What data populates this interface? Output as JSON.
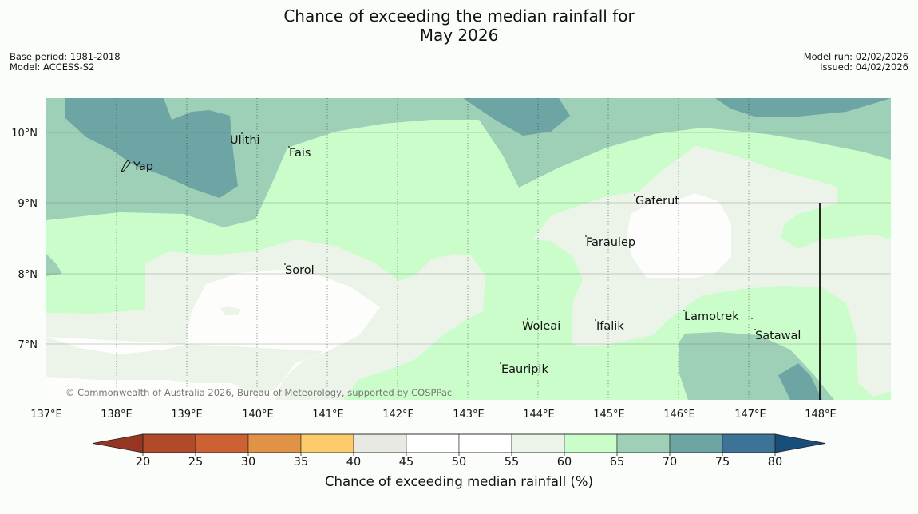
{
  "title": {
    "line1": "Chance of exceeding the median rainfall for",
    "line2": "May 2026"
  },
  "meta": {
    "base_period": "Base period: 1981-2018",
    "model": "Model: ACCESS-S2",
    "model_run": "Model run: 02/02/2026",
    "issued": "Issued: 04/02/2026"
  },
  "map": {
    "longitude_labels": [
      "137°E",
      "138°E",
      "139°E",
      "140°E",
      "141°E",
      "142°E",
      "143°E",
      "144°E",
      "145°E",
      "146°E",
      "147°E",
      "148°E"
    ],
    "latitude_labels": [
      "10°N",
      "9°N",
      "8°N",
      "7°N"
    ],
    "places": [
      {
        "name": "Ulithi"
      },
      {
        "name": "Fais"
      },
      {
        "name": "Yap"
      },
      {
        "name": "Gaferut"
      },
      {
        "name": "Faraulep"
      },
      {
        "name": "Sorol"
      },
      {
        "name": "Woleai"
      },
      {
        "name": "Ifalik"
      },
      {
        "name": "Lamotrek"
      },
      {
        "name": "Satawal"
      },
      {
        "name": "Eauripik"
      }
    ],
    "copyright": "© Commonwealth of Australia 2026, Bureau of Meteorology, supported by COSPPac"
  },
  "colorbar": {
    "ticks": [
      "20",
      "25",
      "30",
      "35",
      "40",
      "45",
      "50",
      "55",
      "60",
      "65",
      "70",
      "75",
      "80"
    ],
    "colors": [
      "#b04a28",
      "#cc6233",
      "#e09347",
      "#fccc6a",
      "#e9e9e4",
      "#ffffff",
      "#ffffff",
      "#ecf4ea",
      "#cbfdcb",
      "#9ed0b8",
      "#6da4a4",
      "#3d7397"
    ],
    "under_color": "#963521",
    "over_color": "#174e7a",
    "label": "Chance of exceeding median rainfall (%)"
  },
  "colors": {
    "c65": "#cbfdcb",
    "c70": "#9ed0b8",
    "c75": "#6da4a4",
    "c55": "#ecf4ea",
    "c50": "#fdfefc"
  }
}
